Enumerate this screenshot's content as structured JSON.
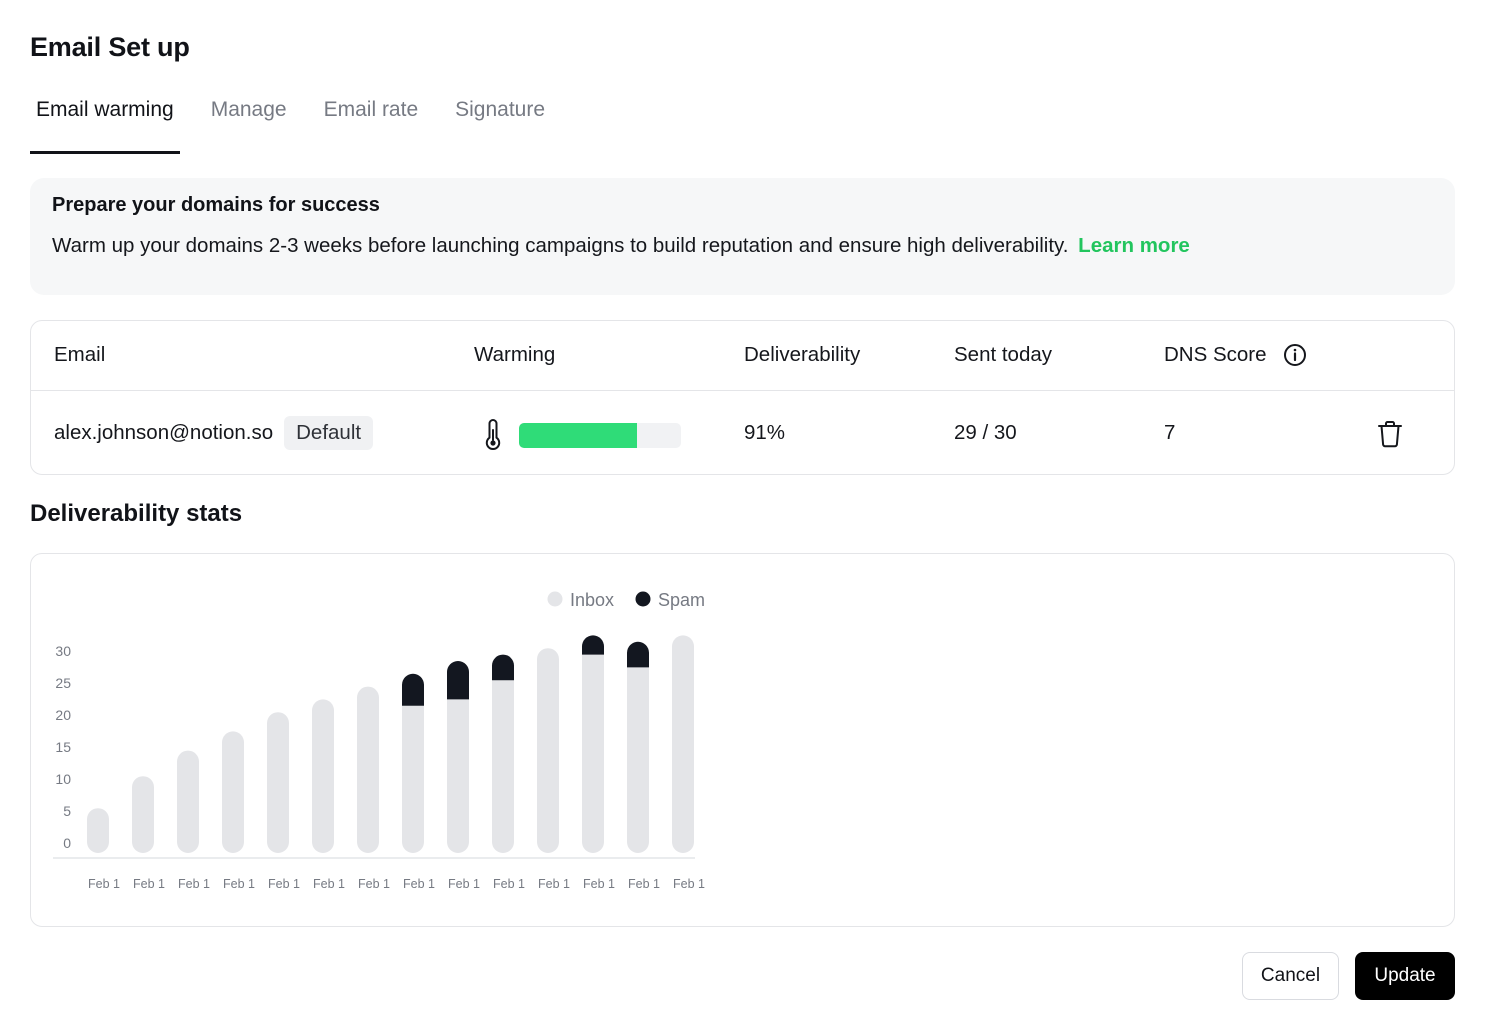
{
  "page": {
    "title": "Email Set up"
  },
  "tabs": [
    {
      "label": "Email warming",
      "active": true
    },
    {
      "label": "Manage",
      "active": false
    },
    {
      "label": "Email rate",
      "active": false
    },
    {
      "label": "Signature",
      "active": false
    }
  ],
  "notice": {
    "title": "Prepare your domains for success",
    "text": "Warm up your domains 2-3 weeks before launching campaigns to build reputation and ensure high deliverability.",
    "link": "Learn more",
    "link_color": "#22c55e"
  },
  "table": {
    "headers": {
      "email": "Email",
      "warming": "Warming",
      "deliverability": "Deliverability",
      "sent_today": "Sent today",
      "dns_score": "DNS Score"
    },
    "row": {
      "email": "alex.johnson@notion.so",
      "badge": "Default",
      "warming_progress": 0.73,
      "deliverability": "91%",
      "sent_today": "29 / 30",
      "dns_score": "7"
    },
    "icons": {
      "info": "info-icon",
      "warming": "thermometer-icon",
      "delete": "trash-icon"
    },
    "progress_color": "#2fdc78"
  },
  "stats": {
    "title": "Deliverability stats"
  },
  "chart_data": {
    "type": "bar",
    "stacked": true,
    "legend": {
      "position": "top-center",
      "items": [
        "Inbox",
        "Spam"
      ]
    },
    "categories": [
      "Feb 1",
      "Feb 1",
      "Feb 1",
      "Feb 1",
      "Feb 1",
      "Feb 1",
      "Feb 1",
      "Feb 1",
      "Feb 1",
      "Feb 1",
      "Feb 1",
      "Feb 1",
      "Feb 1",
      "Feb 1"
    ],
    "series": [
      {
        "name": "Inbox",
        "color": "#e4e5e8",
        "values": [
          7,
          12,
          16,
          19,
          22,
          24,
          26,
          23,
          24,
          27,
          32,
          31,
          29,
          34
        ]
      },
      {
        "name": "Spam",
        "color": "#131720",
        "values": [
          0,
          0,
          0,
          0,
          0,
          0,
          0,
          5,
          6,
          4,
          0,
          3,
          4,
          0
        ]
      }
    ],
    "yticks": [
      0,
      5,
      10,
      15,
      20,
      25,
      30
    ],
    "ylim": [
      0,
      34
    ],
    "grid": false
  },
  "actions": {
    "cancel": "Cancel",
    "update": "Update"
  }
}
